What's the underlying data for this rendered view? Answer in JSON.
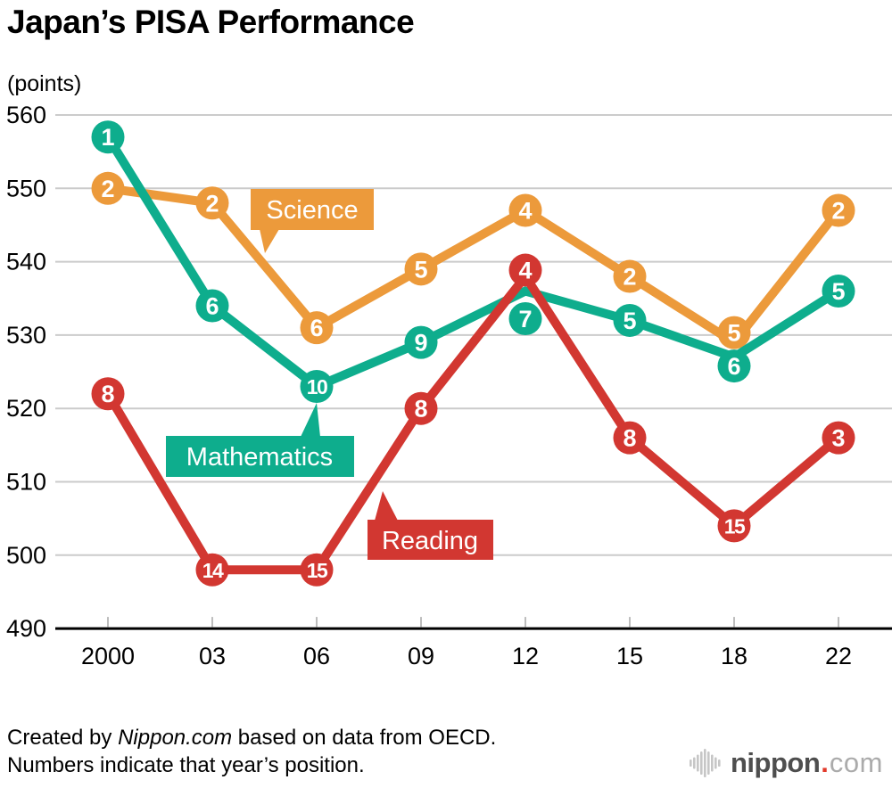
{
  "title": "Japan’s PISA Performance",
  "y_axis_unit": "(points)",
  "footer": {
    "line1_prefix": "Created by ",
    "line1_source": "Nippon.com",
    "line1_suffix": " based on data from OECD.",
    "line2": "Numbers indicate that year’s position."
  },
  "logo": {
    "name": "nippon",
    "dot": ".",
    "tld": "com"
  },
  "colors": {
    "science": "#EC9A3B",
    "mathematics": "#0EAD8D",
    "reading": "#D23731",
    "grid": "#CBCBCB",
    "axis": "#000000",
    "tick": "#BDBDBD",
    "label_text": "#FFFFFF",
    "logo_dark": "#4E4E4E",
    "logo_light": "#ABABAB",
    "logo_red": "#E23A2B"
  },
  "chart_data": {
    "type": "line",
    "title": "Japan’s PISA Performance",
    "ylabel": "(points)",
    "ylim": [
      490,
      560
    ],
    "grid": true,
    "legend_position": "inline-callouts",
    "x_labels": [
      "2000",
      "03",
      "06",
      "09",
      "12",
      "15",
      "18",
      "22"
    ],
    "y_ticks": [
      560,
      550,
      540,
      530,
      520,
      510,
      500,
      490
    ],
    "series": [
      {
        "name": "Science",
        "color": "#EC9A3B",
        "values": [
          550,
          548,
          531,
          539,
          547,
          538,
          529,
          547
        ],
        "ranks": [
          2,
          2,
          6,
          5,
          4,
          2,
          5,
          2
        ]
      },
      {
        "name": "Mathematics",
        "color": "#0EAD8D",
        "values": [
          557,
          534,
          523,
          529,
          536,
          532,
          527,
          536
        ],
        "ranks": [
          1,
          6,
          10,
          9,
          7,
          5,
          6,
          5
        ]
      },
      {
        "name": "Reading",
        "color": "#D23731",
        "values": [
          522,
          498,
          498,
          520,
          538,
          516,
          504,
          516
        ],
        "ranks": [
          8,
          14,
          15,
          8,
          4,
          8,
          15,
          3
        ]
      }
    ]
  }
}
